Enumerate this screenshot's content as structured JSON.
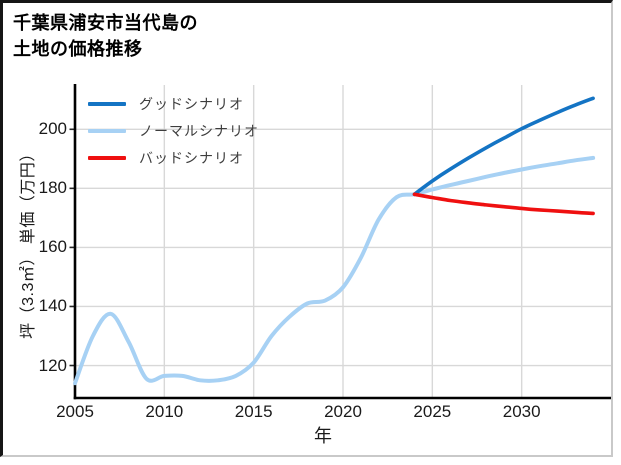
{
  "title": {
    "line1": "千葉県浦安市当代島の",
    "line2": "土地の価格推移"
  },
  "legend": [
    {
      "label": "グッドシナリオ",
      "series": "good"
    },
    {
      "label": "ノーマルシナリオ",
      "series": "normal"
    },
    {
      "label": "バッドシナリオ",
      "series": "bad"
    }
  ],
  "colors": {
    "good": "#1474c4",
    "normal": "#a7d1f4",
    "bad": "#ef1010",
    "grid": "#d8d8d8",
    "axis": "#000000",
    "tick_text": "#1a1a1a"
  },
  "axes": {
    "x_label": "年",
    "y_label": "坪（3.3㎡） 単価（万円）",
    "x_ticks": [
      2005,
      2010,
      2015,
      2020,
      2025,
      2030
    ],
    "y_ticks": [
      120,
      140,
      160,
      180,
      200
    ]
  },
  "chart_data": {
    "type": "line",
    "title": "千葉県浦安市当代島の土地の価格推移",
    "xlabel": "年",
    "ylabel": "坪（3.3㎡） 単価（万円）",
    "xlim": [
      2005,
      2035
    ],
    "ylim": [
      109,
      215
    ],
    "grid": true,
    "legend_position": "upper left",
    "series": [
      {
        "name": "ノーマルシナリオ",
        "color_key": "normal",
        "x": [
          2005,
          2006,
          2007,
          2008,
          2009,
          2010,
          2011,
          2012,
          2013,
          2014,
          2015,
          2016,
          2017,
          2018,
          2019,
          2020,
          2021,
          2022,
          2023,
          2024,
          2025,
          2026,
          2027,
          2028,
          2029,
          2030,
          2031,
          2032,
          2033,
          2034
        ],
        "values": [
          114,
          130,
          137.5,
          128,
          115.5,
          116.5,
          116.5,
          115,
          115,
          116.5,
          121,
          130,
          136.5,
          141,
          142,
          146.5,
          156.5,
          169.5,
          177,
          178,
          179.6,
          181.1,
          182.5,
          183.9,
          185.2,
          186.4,
          187.5,
          188.5,
          189.5,
          190.3
        ]
      },
      {
        "name": "グッドシナリオ",
        "color_key": "good",
        "x": [
          2024,
          2025,
          2026,
          2027,
          2028,
          2029,
          2030,
          2031,
          2032,
          2033,
          2034
        ],
        "values": [
          178,
          182.5,
          186.5,
          190.2,
          193.7,
          197,
          200.2,
          203,
          205.7,
          208.2,
          210.5
        ]
      },
      {
        "name": "バッドシナリオ",
        "color_key": "bad",
        "x": [
          2024,
          2025,
          2026,
          2027,
          2028,
          2029,
          2030,
          2031,
          2032,
          2033,
          2034
        ],
        "values": [
          178,
          176.9,
          175.9,
          175.1,
          174.4,
          173.8,
          173.2,
          172.7,
          172.3,
          171.9,
          171.5
        ]
      }
    ]
  }
}
